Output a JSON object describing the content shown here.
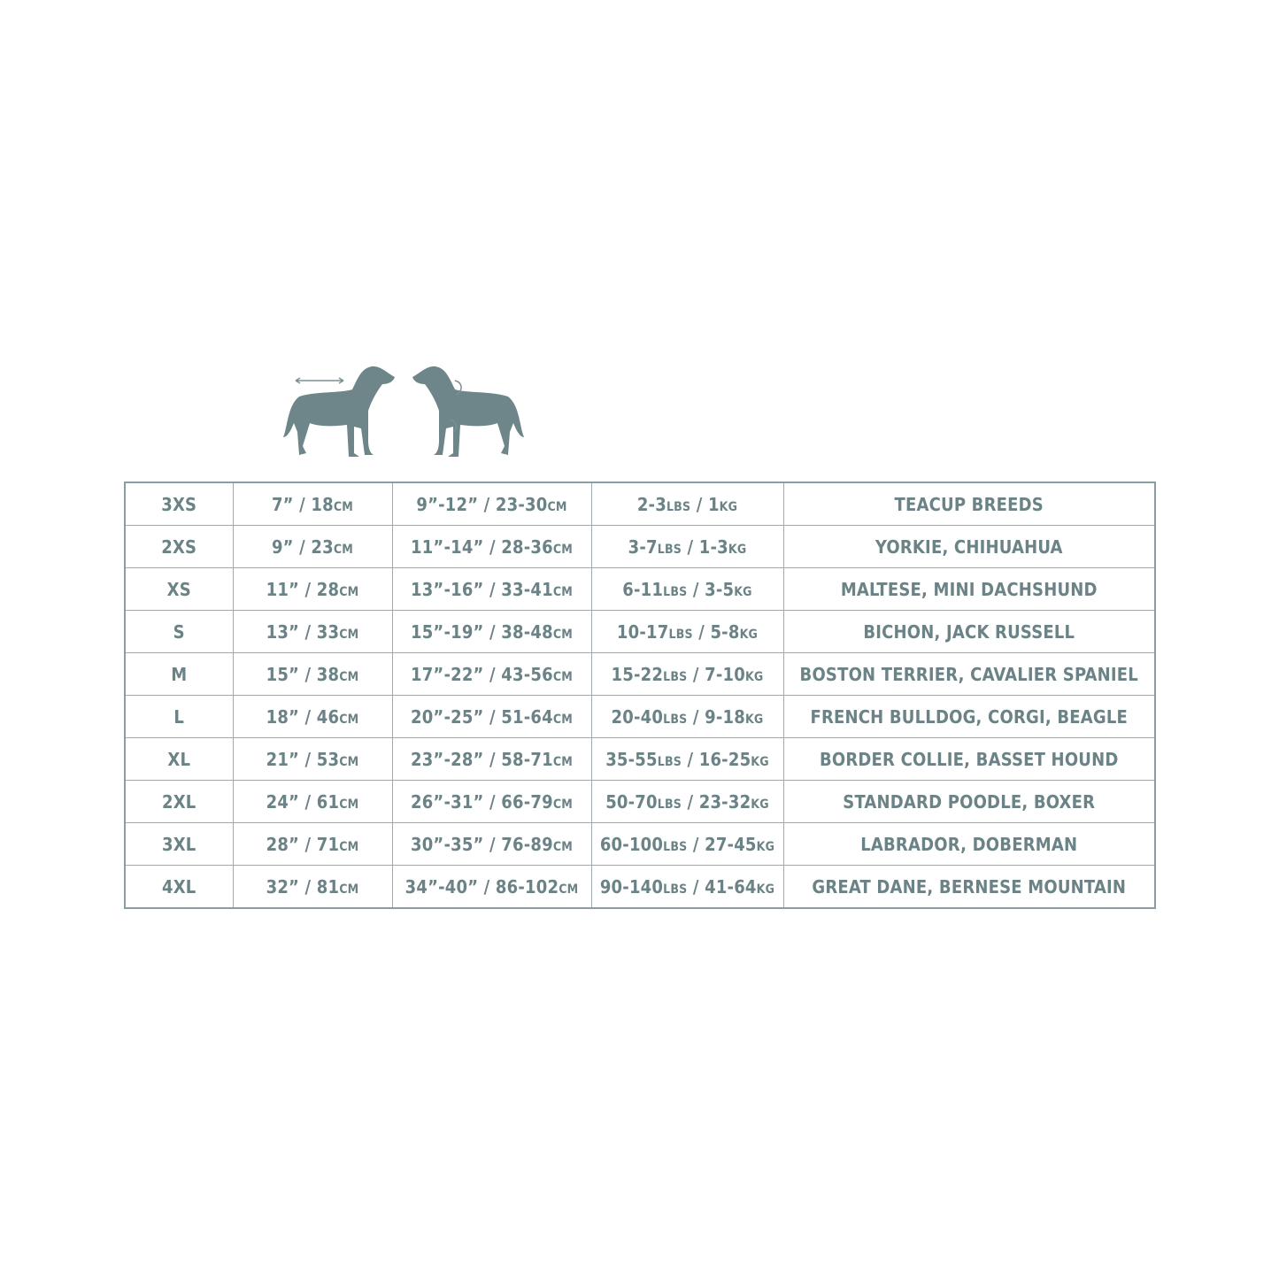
{
  "colors": {
    "text": "#6b8286",
    "border": "#9aacaf",
    "dog": "#6e8689"
  },
  "icons": [
    "dog-length-measure-icon",
    "dog-girth-measure-icon"
  ],
  "rows": [
    {
      "size": "3XS",
      "cells": [
        [
          "7” / 18",
          "CM"
        ],
        [
          "9”-12” / 23-30",
          "CM"
        ],
        [
          "2-3",
          "LBS",
          " / 1",
          "KG"
        ],
        [
          "TEACUP BREEDS"
        ]
      ]
    },
    {
      "size": "2XS",
      "cells": [
        [
          "9” / 23",
          "CM"
        ],
        [
          "11”-14” / 28-36",
          "CM"
        ],
        [
          "3-7",
          "LBS",
          " / 1-3",
          "KG"
        ],
        [
          "YORKIE, CHIHUAHUA"
        ]
      ]
    },
    {
      "size": "XS",
      "cells": [
        [
          "11” / 28",
          "CM"
        ],
        [
          "13”-16” / 33-41",
          "CM"
        ],
        [
          "6-11",
          "LBS",
          " / 3-5",
          "KG"
        ],
        [
          "MALTESE, MINI DACHSHUND"
        ]
      ]
    },
    {
      "size": "S",
      "cells": [
        [
          "13” / 33",
          "CM"
        ],
        [
          "15”-19” / 38-48",
          "CM"
        ],
        [
          "10-17",
          "LBS",
          " / 5-8",
          "KG"
        ],
        [
          "BICHON, JACK RUSSELL"
        ]
      ]
    },
    {
      "size": "M",
      "cells": [
        [
          "15” / 38",
          "CM"
        ],
        [
          "17”-22” / 43-56",
          "CM"
        ],
        [
          "15-22",
          "LBS",
          " / 7-10",
          "KG"
        ],
        [
          "BOSTON TERRIER, CAVALIER SPANIEL"
        ]
      ]
    },
    {
      "size": "L",
      "cells": [
        [
          "18” / 46",
          "CM"
        ],
        [
          "20”-25” / 51-64",
          "CM"
        ],
        [
          "20-40",
          "LBS",
          " / 9-18",
          "KG"
        ],
        [
          "FRENCH BULLDOG, CORGI, BEAGLE"
        ]
      ]
    },
    {
      "size": "XL",
      "cells": [
        [
          "21” / 53",
          "CM"
        ],
        [
          "23”-28” / 58-71",
          "CM"
        ],
        [
          "35-55",
          "LBS",
          " / 16-25",
          "KG"
        ],
        [
          "BORDER COLLIE, BASSET HOUND"
        ]
      ]
    },
    {
      "size": "2XL",
      "cells": [
        [
          "24” / 61",
          "CM"
        ],
        [
          "26”-31” / 66-79",
          "CM"
        ],
        [
          "50-70",
          "LBS",
          " / 23-32",
          "KG"
        ],
        [
          "STANDARD POODLE, BOXER"
        ]
      ]
    },
    {
      "size": "3XL",
      "cells": [
        [
          "28” / 71",
          "CM"
        ],
        [
          "30”-35” / 76-89",
          "CM"
        ],
        [
          "60-100",
          "LBS",
          " / 27-45",
          "KG"
        ],
        [
          "LABRADOR, DOBERMAN"
        ]
      ]
    },
    {
      "size": "4XL",
      "cells": [
        [
          "32” / 81",
          "CM"
        ],
        [
          "34”-40” / 86-102",
          "CM"
        ],
        [
          "90-140",
          "LBS",
          " / 41-64",
          "KG"
        ],
        [
          "GREAT DANE, BERNESE MOUNTAIN"
        ]
      ]
    }
  ]
}
